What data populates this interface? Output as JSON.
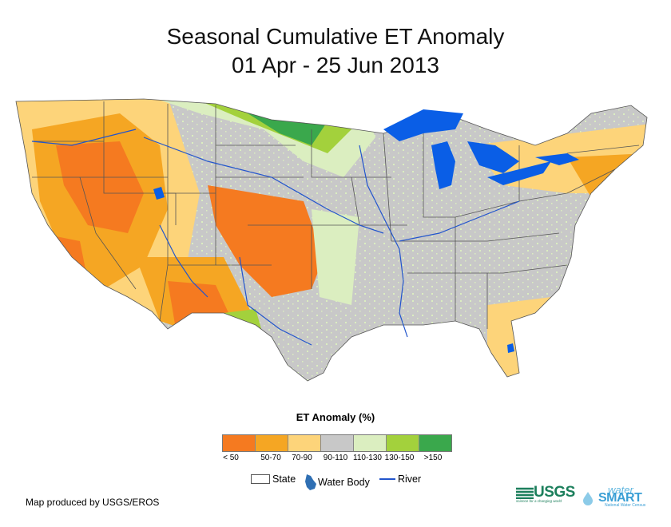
{
  "title": {
    "line1": "Seasonal Cumulative ET Anomaly",
    "line2": "01 Apr - 25 Jun 2013"
  },
  "legend": {
    "title": "ET Anomaly (%)",
    "classes": [
      {
        "label": "< 50",
        "color": "#f57a20"
      },
      {
        "label": "50-70",
        "color": "#f5a623"
      },
      {
        "label": "70-90",
        "color": "#fdd47a"
      },
      {
        "label": "90-110",
        "color": "#c8c8c8"
      },
      {
        "label": "110-130",
        "color": "#dbeec0"
      },
      {
        "label": "130-150",
        "color": "#a3d13c"
      },
      {
        "label": ">150",
        "color": "#3aa84c"
      }
    ],
    "keys": {
      "state": "State",
      "water": "Water Body",
      "river": "River"
    }
  },
  "credit": "Map produced by USGS/EROS",
  "logos": {
    "usgs": "USGS",
    "usgs_tagline": "science for a changing world",
    "watersmart_top": "water",
    "watersmart_main": "SMART",
    "watersmart_sub": "National Water Census"
  },
  "colors": {
    "water": "#0a5ee6",
    "river": "#2255cc",
    "state_line": "#555555"
  }
}
